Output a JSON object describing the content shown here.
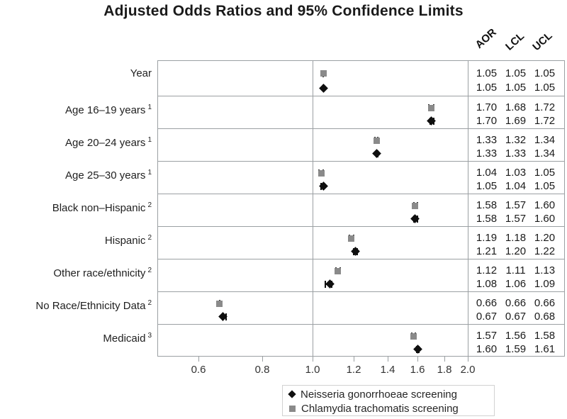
{
  "title": "Adjusted Odds Ratios and 95% Confidence Limits",
  "chart_data": {
    "type": "forest",
    "title": "Adjusted Odds Ratios and 95% Confidence Limits",
    "value_columns": [
      "AOR",
      "LCL",
      "UCL"
    ],
    "x_axis": {
      "scale": "log",
      "min": 0.5,
      "max": 2.0,
      "reference_line": 1.0,
      "ticks": [
        0.6,
        0.8,
        1.0,
        1.2,
        1.4,
        1.6,
        1.8,
        2.0
      ]
    },
    "legend": [
      {
        "label": "Neisseria gonorrhoeae screening",
        "marker": "diamond",
        "color": "#0f0f0f",
        "cap_color": "#0f0f0f"
      },
      {
        "label": "Chlamydia trachomatis screening",
        "marker": "square",
        "color": "#8a8a8a",
        "cap_color": "#3a3a3a"
      }
    ],
    "rows": [
      {
        "label": "Year",
        "sup": "",
        "points": [
          {
            "series": "Chlamydia trachomatis screening",
            "aor": 1.05,
            "lcl": 1.05,
            "ucl": 1.05
          },
          {
            "series": "Neisseria gonorrhoeae screening",
            "aor": 1.05,
            "lcl": 1.05,
            "ucl": 1.05
          }
        ]
      },
      {
        "label": "Age 16–19 years",
        "sup": "1",
        "points": [
          {
            "series": "Chlamydia trachomatis screening",
            "aor": 1.7,
            "lcl": 1.68,
            "ucl": 1.72
          },
          {
            "series": "Neisseria gonorrhoeae screening",
            "aor": 1.7,
            "lcl": 1.69,
            "ucl": 1.72
          }
        ]
      },
      {
        "label": "Age 20–24 years",
        "sup": "1",
        "points": [
          {
            "series": "Chlamydia trachomatis screening",
            "aor": 1.33,
            "lcl": 1.32,
            "ucl": 1.34
          },
          {
            "series": "Neisseria gonorrhoeae screening",
            "aor": 1.33,
            "lcl": 1.33,
            "ucl": 1.34
          }
        ]
      },
      {
        "label": "Age 25–30 years",
        "sup": "1",
        "points": [
          {
            "series": "Chlamydia trachomatis screening",
            "aor": 1.04,
            "lcl": 1.03,
            "ucl": 1.05
          },
          {
            "series": "Neisseria gonorrhoeae screening",
            "aor": 1.05,
            "lcl": 1.04,
            "ucl": 1.05
          }
        ]
      },
      {
        "label": "Black non–Hispanic",
        "sup": "2",
        "points": [
          {
            "series": "Chlamydia trachomatis screening",
            "aor": 1.58,
            "lcl": 1.57,
            "ucl": 1.6
          },
          {
            "series": "Neisseria gonorrhoeae screening",
            "aor": 1.58,
            "lcl": 1.57,
            "ucl": 1.6
          }
        ]
      },
      {
        "label": "Hispanic",
        "sup": "2",
        "points": [
          {
            "series": "Chlamydia trachomatis screening",
            "aor": 1.19,
            "lcl": 1.18,
            "ucl": 1.2
          },
          {
            "series": "Neisseria gonorrhoeae screening",
            "aor": 1.21,
            "lcl": 1.2,
            "ucl": 1.22
          }
        ]
      },
      {
        "label": "Other race/ethnicity",
        "sup": "2",
        "points": [
          {
            "series": "Chlamydia trachomatis screening",
            "aor": 1.12,
            "lcl": 1.11,
            "ucl": 1.13
          },
          {
            "series": "Neisseria gonorrhoeae screening",
            "aor": 1.08,
            "lcl": 1.06,
            "ucl": 1.09
          }
        ]
      },
      {
        "label": "No Race/Ethnicity Data",
        "sup": "2",
        "points": [
          {
            "series": "Chlamydia trachomatis screening",
            "aor": 0.66,
            "lcl": 0.66,
            "ucl": 0.66
          },
          {
            "series": "Neisseria gonorrhoeae screening",
            "aor": 0.67,
            "lcl": 0.67,
            "ucl": 0.68
          }
        ]
      },
      {
        "label": "Medicaid",
        "sup": "3",
        "points": [
          {
            "series": "Chlamydia trachomatis screening",
            "aor": 1.57,
            "lcl": 1.56,
            "ucl": 1.58
          },
          {
            "series": "Neisseria gonorrhoeae screening",
            "aor": 1.6,
            "lcl": 1.59,
            "ucl": 1.61
          }
        ]
      }
    ]
  }
}
